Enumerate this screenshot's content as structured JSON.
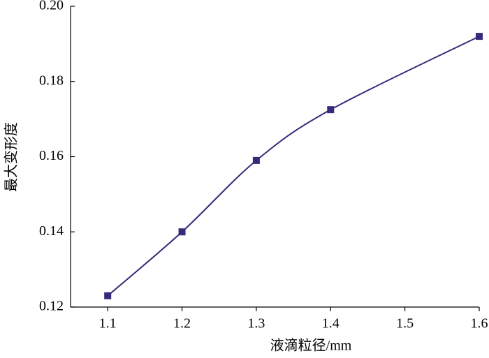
{
  "chart_data": {
    "type": "line",
    "x_label": "液滴粒径/mm",
    "y_label": "最大变形度",
    "series": [
      {
        "name": "最大变形度",
        "color": "#3a2878",
        "x": [
          1.1,
          1.2,
          1.3,
          1.4,
          1.6
        ],
        "values": [
          0.123,
          0.14,
          0.159,
          0.1725,
          0.192
        ]
      }
    ],
    "xlim": [
      1.05,
      1.6
    ],
    "xticks": [
      1.1,
      1.2,
      1.3,
      1.4,
      1.5,
      1.6
    ],
    "ylim": [
      0.12,
      0.2
    ],
    "yticks": [
      0.12,
      0.14,
      0.16,
      0.18,
      {
        "value": 0.2,
        "label": "0.20"
      }
    ],
    "smooth": true,
    "grid": false
  }
}
